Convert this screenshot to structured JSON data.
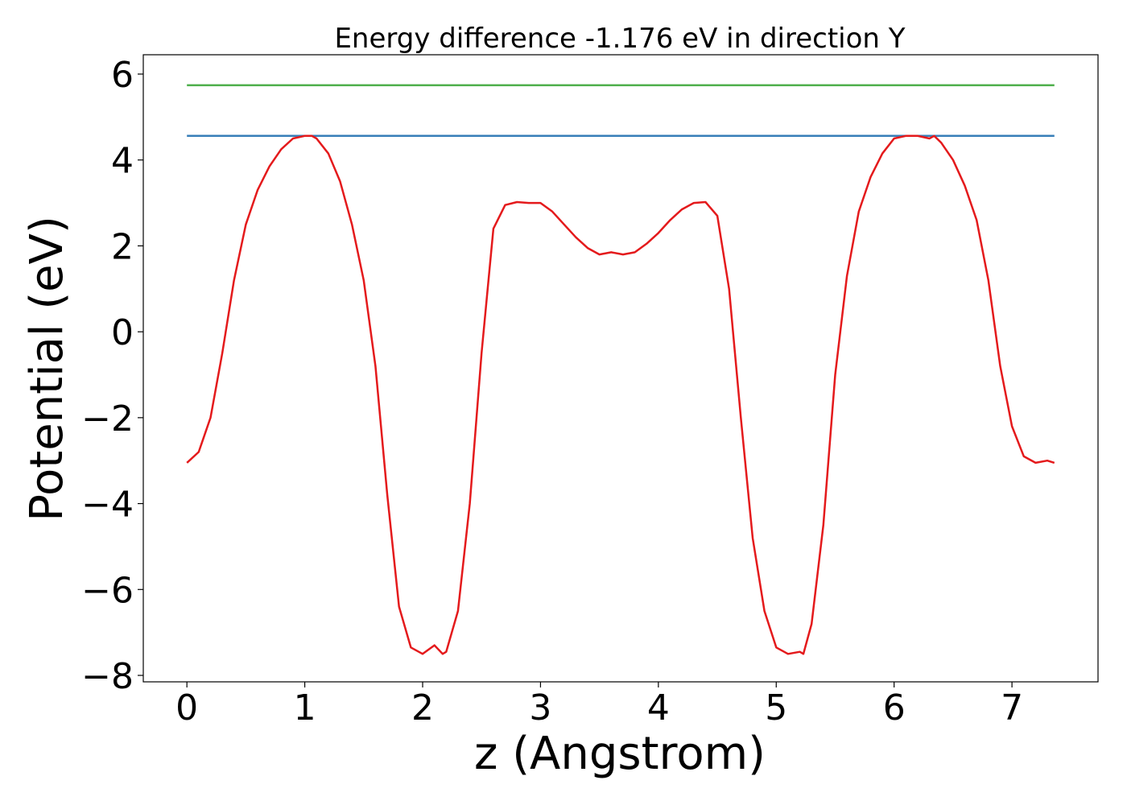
{
  "chart_data": {
    "type": "line",
    "title": "Energy difference -1.176 eV in direction Y",
    "xlabel": "z (Angstrom)",
    "ylabel": "Potential (eV)",
    "xlim": [
      -0.37,
      7.73
    ],
    "ylim": [
      -8.15,
      6.45
    ],
    "grid": false,
    "legend": "none",
    "xticks": [
      {
        "value": 0,
        "label": "0"
      },
      {
        "value": 1,
        "label": "1"
      },
      {
        "value": 2,
        "label": "2"
      },
      {
        "value": 3,
        "label": "3"
      },
      {
        "value": 4,
        "label": "4"
      },
      {
        "value": 5,
        "label": "5"
      },
      {
        "value": 6,
        "label": "6"
      },
      {
        "value": 7,
        "label": "7"
      }
    ],
    "yticks": [
      {
        "value": 6,
        "label": "6"
      },
      {
        "value": 4,
        "label": "4"
      },
      {
        "value": 2,
        "label": "2"
      },
      {
        "value": 0,
        "label": "0"
      },
      {
        "value": -2,
        "label": "−2"
      },
      {
        "value": -4,
        "label": "−4"
      },
      {
        "value": -6,
        "label": "−6"
      },
      {
        "value": -8,
        "label": "−8"
      }
    ],
    "series": [
      {
        "color": "#4daf4a",
        "x": [
          0,
          7.36
        ],
        "y": [
          5.74,
          5.74
        ]
      },
      {
        "color": "#377eb8",
        "x": [
          0,
          7.36
        ],
        "y": [
          4.56,
          4.56
        ]
      },
      {
        "color": "#e41a1c",
        "x": [
          0.0,
          0.1,
          0.2,
          0.3,
          0.4,
          0.5,
          0.6,
          0.7,
          0.8,
          0.9,
          1.0,
          1.06,
          1.1,
          1.2,
          1.3,
          1.4,
          1.5,
          1.6,
          1.7,
          1.8,
          1.9,
          2.0,
          2.1,
          2.17,
          2.2,
          2.3,
          2.4,
          2.5,
          2.6,
          2.7,
          2.8,
          2.9,
          3.0,
          3.1,
          3.2,
          3.3,
          3.4,
          3.5,
          3.6,
          3.7,
          3.8,
          3.9,
          4.0,
          4.1,
          4.2,
          4.3,
          4.4,
          4.5,
          4.6,
          4.7,
          4.8,
          4.9,
          5.0,
          5.1,
          5.2,
          5.23,
          5.3,
          5.4,
          5.5,
          5.6,
          5.7,
          5.8,
          5.9,
          6.0,
          6.1,
          6.2,
          6.3,
          6.34,
          6.4,
          6.5,
          6.6,
          6.7,
          6.8,
          6.9,
          7.0,
          7.1,
          7.2,
          7.3,
          7.36
        ],
        "y": [
          -3.05,
          -2.8,
          -2.0,
          -0.5,
          1.2,
          2.5,
          3.3,
          3.85,
          4.25,
          4.5,
          4.56,
          4.56,
          4.5,
          4.15,
          3.5,
          2.5,
          1.2,
          -0.8,
          -3.8,
          -6.4,
          -7.35,
          -7.5,
          -7.3,
          -7.5,
          -7.45,
          -6.5,
          -4.0,
          -0.5,
          2.4,
          2.95,
          3.02,
          3.0,
          3.0,
          2.8,
          2.5,
          2.2,
          1.95,
          1.8,
          1.85,
          1.8,
          1.85,
          2.05,
          2.3,
          2.6,
          2.85,
          3.0,
          3.02,
          2.7,
          1.0,
          -2.0,
          -4.8,
          -6.5,
          -7.35,
          -7.5,
          -7.45,
          -7.5,
          -6.8,
          -4.5,
          -1.0,
          1.3,
          2.8,
          3.6,
          4.15,
          4.5,
          4.56,
          4.56,
          4.5,
          4.56,
          4.4,
          4.0,
          3.4,
          2.6,
          1.2,
          -0.8,
          -2.2,
          -2.9,
          -3.05,
          -3.0,
          -3.05
        ]
      }
    ]
  }
}
